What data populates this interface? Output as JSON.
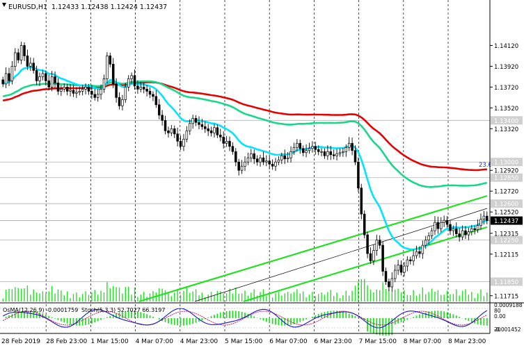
{
  "header": {
    "symbol": "EURUSD,H1",
    "values": "1.12433 1.12438 1.12424 1.12437"
  },
  "colors": {
    "background": "#ffffff",
    "axis": "#000000",
    "grid": "#000000",
    "candle": "#000000",
    "ema_fast": "#00e5ff",
    "ema_mid": "#17d88a",
    "ema_slow": "#e60000",
    "channel": "#22e022",
    "macd_hist": "#22dd22",
    "stoch_main": "#1515cc",
    "stoch_signal": "#cc1166",
    "level_box": "#d0d0d0",
    "current_box": "#000000"
  },
  "chart_data": [
    {
      "type": "candlestick",
      "title": "EURUSD,H1",
      "ylim": [
        1.1166,
        1.1445
      ],
      "y_ticks": [
        "1.14120",
        "1.13920",
        "1.13720",
        "1.13520",
        "1.13320",
        "1.12920",
        "1.12720",
        "1.12520",
        "1.12315",
        "1.12115",
        "1.11715"
      ],
      "x_labels": [
        "28 Feb 2019",
        "28 Feb 23:00",
        "1 Mar 15:00",
        "4 Mar 07:00",
        "4 Mar 23:00",
        "5 Mar 15:00",
        "6 Mar 07:00",
        "6 Mar 23:00",
        "7 Mar 15:00",
        "8 Mar 07:00",
        "8 Mar 23:00"
      ],
      "level_labels": [
        {
          "label": "1.13400",
          "value": 1.134
        },
        {
          "label": "1.13000",
          "value": 1.13
        },
        {
          "label": "1.12850",
          "value": 1.1285
        },
        {
          "label": "1.12600",
          "value": 1.126
        },
        {
          "label": "1.12250",
          "value": 1.1225
        },
        {
          "label": "1.11850",
          "value": 1.1185
        }
      ],
      "current_price": {
        "label": "1.12437",
        "value": 1.12437
      },
      "fib_label": "23.6",
      "close": [
        1.1375,
        1.1385,
        1.1378,
        1.1392,
        1.1405,
        1.1398,
        1.1412,
        1.1402,
        1.1392,
        1.1395,
        1.1388,
        1.1378,
        1.1382,
        1.1385,
        1.1378,
        1.1372,
        1.1382,
        1.1376,
        1.1368,
        1.137,
        1.1372,
        1.1368,
        1.1369,
        1.1366,
        1.1367,
        1.1368,
        1.137,
        1.1372,
        1.1368,
        1.1365,
        1.1362,
        1.1365,
        1.137,
        1.138,
        1.1402,
        1.1394,
        1.1375,
        1.1362,
        1.1354,
        1.136,
        1.1372,
        1.138,
        1.1383,
        1.1373,
        1.137,
        1.1372,
        1.137,
        1.1368,
        1.1365,
        1.1363,
        1.1355,
        1.1345,
        1.134,
        1.133,
        1.1328,
        1.1332,
        1.1327,
        1.132,
        1.1315,
        1.1322,
        1.133,
        1.1337,
        1.1342,
        1.1338,
        1.1336,
        1.1334,
        1.1332,
        1.133,
        1.1328,
        1.1333,
        1.1326,
        1.1324,
        1.1318,
        1.132,
        1.1315,
        1.131,
        1.13,
        1.1292,
        1.1296,
        1.13,
        1.1304,
        1.1308,
        1.1303,
        1.13,
        1.1304,
        1.13,
        1.1301,
        1.1298,
        1.1296,
        1.13,
        1.1302,
        1.1306,
        1.1303,
        1.1304,
        1.131,
        1.1314,
        1.1318,
        1.1313,
        1.1309,
        1.1311,
        1.1313,
        1.1315,
        1.1312,
        1.131,
        1.131,
        1.1306,
        1.131,
        1.1307,
        1.1306,
        1.1308,
        1.1309,
        1.131,
        1.1314,
        1.1318,
        1.1311,
        1.13,
        1.1275,
        1.125,
        1.123,
        1.1212,
        1.1205,
        1.1215,
        1.1225,
        1.122,
        1.1195,
        1.1185,
        1.118,
        1.1188,
        1.1196,
        1.1201,
        1.1194,
        1.12,
        1.1206,
        1.1205,
        1.121,
        1.1214,
        1.1212,
        1.122,
        1.1225,
        1.1229,
        1.1234,
        1.1242,
        1.1236,
        1.1242,
        1.1244,
        1.124,
        1.1234,
        1.1236,
        1.1231,
        1.1228,
        1.1234,
        1.123,
        1.1233,
        1.1236,
        1.1235,
        1.1239,
        1.1245,
        1.1248,
        1.12437
      ],
      "sma_fast_end": 1.1244,
      "sma_mid_end": 1.128,
      "sma_slow_end": 1.1293,
      "macd": {
        "label": "OsMA(12,26,9) -0.0001759"
      },
      "stochastic": {
        "label": "Stoch(5,3,3) 52.7027 66.3197",
        "right_labels": [
          "0.0009188",
          "0.00",
          "-0.001452"
        ],
        "levels": [
          "80",
          "20"
        ]
      }
    }
  ]
}
